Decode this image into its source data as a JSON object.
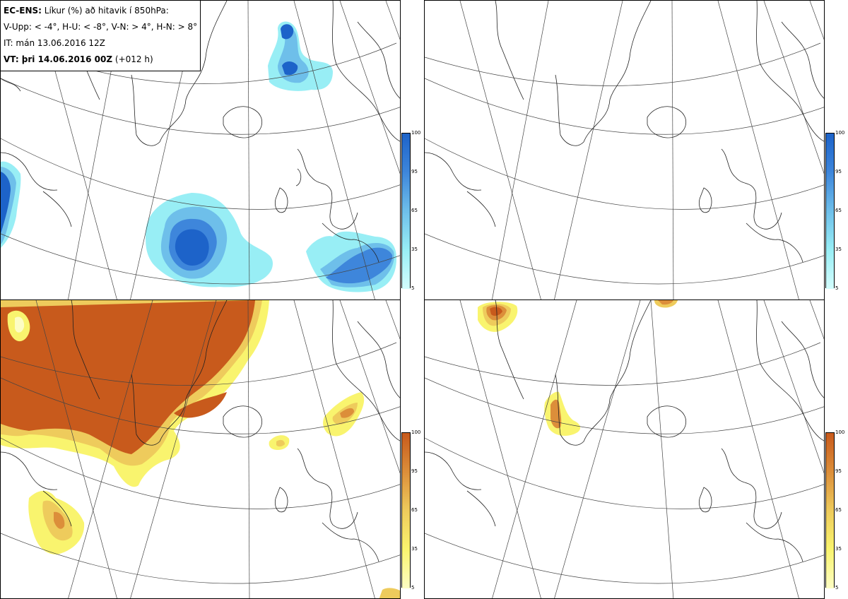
{
  "header": {
    "model": "EC-ENS:",
    "description": "Líkur (%) að hitavik í 850hPa:",
    "panels_legend": "V-Upp: < -4°, H-U: < -8°, V-N: > 4°, H-N: > 8°",
    "initial_time": "IT: mán 13.06.2016 12Z",
    "valid_time_label": "VT: þri 14.06.2016 00Z",
    "lead_time": "(+012 h)"
  },
  "panels": [
    {
      "id": "top-left",
      "variable": "probability temperature anomaly < -4°",
      "color_scheme": "blue"
    },
    {
      "id": "top-right",
      "variable": "probability temperature anomaly < -8°",
      "color_scheme": "blue"
    },
    {
      "id": "bottom-left",
      "variable": "probability temperature anomaly > 4°",
      "color_scheme": "orange"
    },
    {
      "id": "bottom-right",
      "variable": "probability temperature anomaly > 8°",
      "color_scheme": "orange"
    }
  ],
  "colorbars": {
    "labels": [
      "100",
      "95",
      "65",
      "35",
      "5"
    ],
    "cold_colors": [
      "#1d63c9",
      "#3e86db",
      "#6ebfea",
      "#98eef5",
      "#d4fdfd"
    ],
    "warm_colors": [
      "#c85a1c",
      "#dc8e3a",
      "#eecb5c",
      "#f9f46e",
      "#fdfdc4"
    ]
  }
}
